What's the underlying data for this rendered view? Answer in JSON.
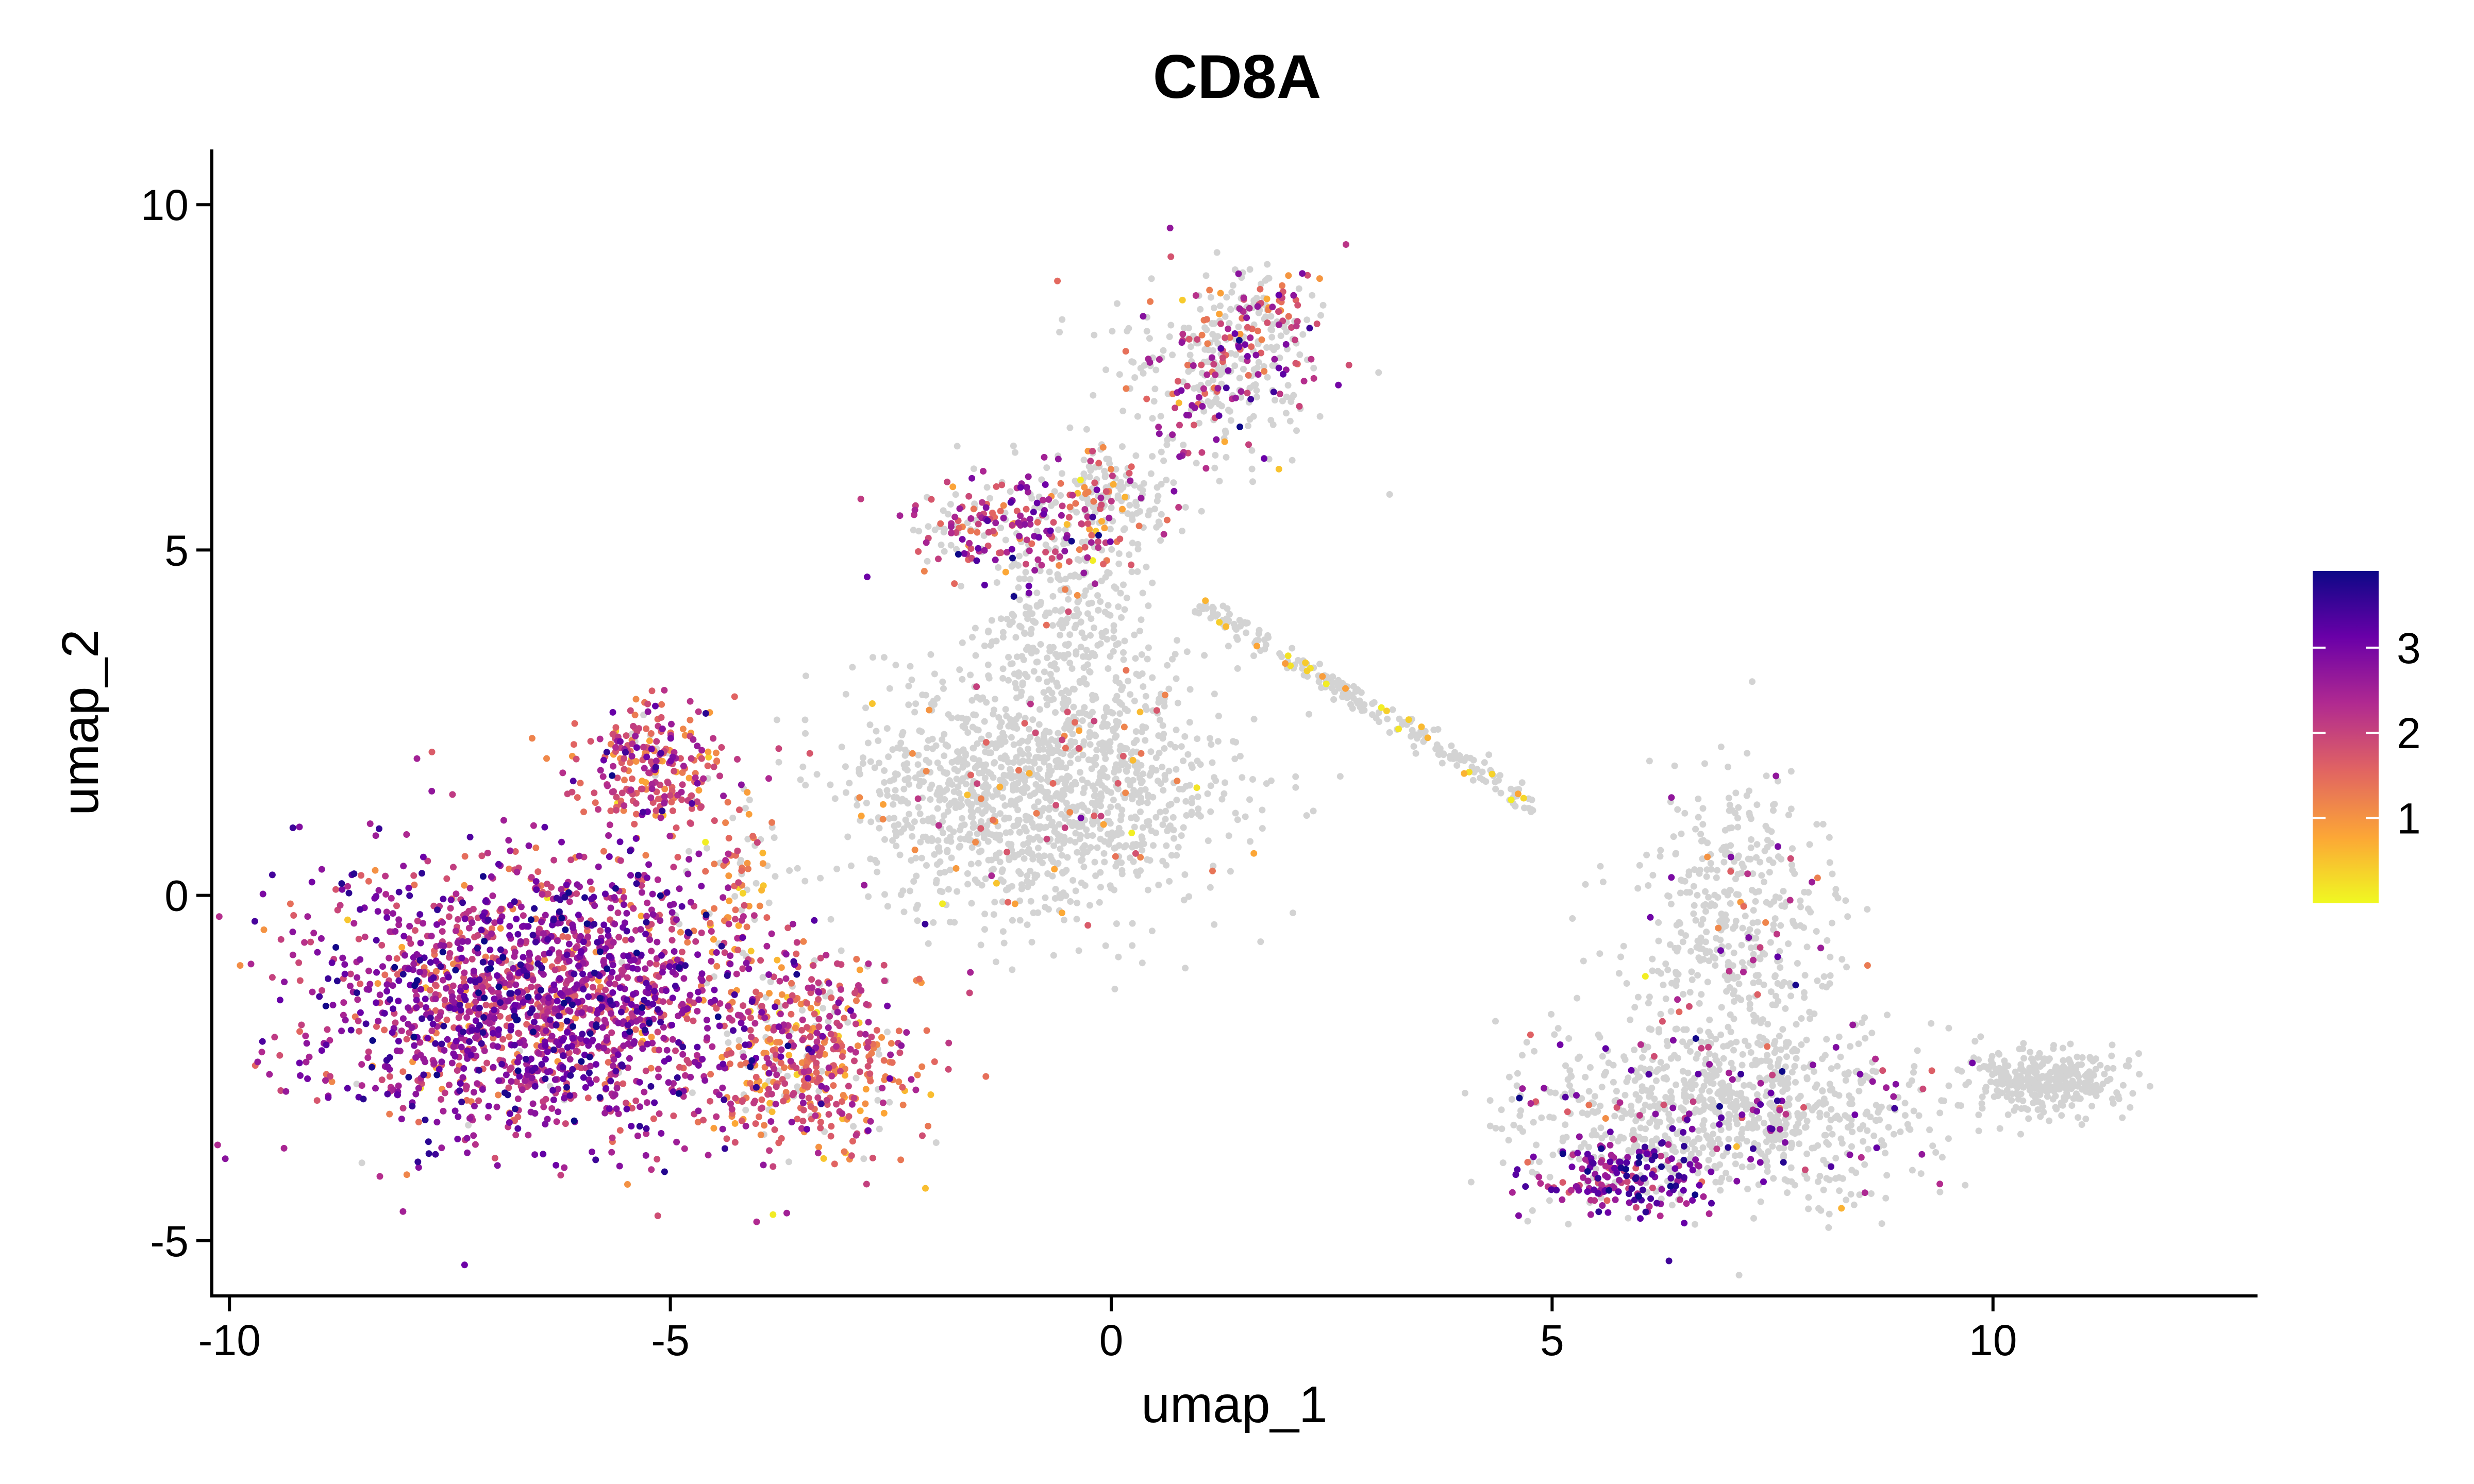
{
  "chart_data": {
    "type": "scatter",
    "title": "CD8A",
    "xlabel": "umap_1",
    "ylabel": "umap_2",
    "xlim": [
      -10.2,
      13
    ],
    "ylim": [
      -5.8,
      10.8
    ],
    "x_ticks": [
      {
        "value": -10,
        "label": "-10"
      },
      {
        "value": -5,
        "label": "-5"
      },
      {
        "value": 0,
        "label": "0"
      },
      {
        "value": 5,
        "label": "5"
      },
      {
        "value": 10,
        "label": "10"
      }
    ],
    "y_ticks": [
      {
        "value": -5,
        "label": "-5"
      },
      {
        "value": 0,
        "label": "0"
      },
      {
        "value": 5,
        "label": "5"
      },
      {
        "value": 10,
        "label": "10"
      }
    ],
    "grid": false,
    "legend": {
      "type": "colorbar",
      "placement": "right",
      "range": [
        0,
        3.9
      ],
      "ticks": [
        {
          "value": 1,
          "label": "1"
        },
        {
          "value": 2,
          "label": "2"
        },
        {
          "value": 3,
          "label": "3"
        }
      ],
      "colors": [
        "#F0F921",
        "#FCA636",
        "#E16462",
        "#B12A90",
        "#6A00A8",
        "#0D0887"
      ]
    },
    "unexpressed_color": "#D3D3D3",
    "clusters": [
      {
        "cx": -6.5,
        "cy": -1.5,
        "sx": 1.3,
        "sy": 1.0,
        "n": 1900,
        "expr_frac": 0.98,
        "expr_mean": 2.5,
        "expr_sd": 0.7
      },
      {
        "cx": -3.5,
        "cy": -2.3,
        "sx": 0.6,
        "sy": 0.7,
        "n": 500,
        "expr_frac": 0.85,
        "expr_mean": 1.6,
        "expr_sd": 0.6
      },
      {
        "cx": -5.2,
        "cy": 1.9,
        "sx": 0.45,
        "sy": 0.45,
        "n": 260,
        "expr_frac": 0.95,
        "expr_mean": 1.8,
        "expr_sd": 0.7
      },
      {
        "cx": -4.2,
        "cy": 0.3,
        "sx": 0.25,
        "sy": 0.7,
        "n": 80,
        "expr_frac": 0.6,
        "expr_mean": 1.3,
        "expr_sd": 0.5
      },
      {
        "cx": -0.8,
        "cy": 1.5,
        "sx": 1.1,
        "sy": 0.9,
        "n": 1300,
        "expr_frac": 0.06,
        "expr_mean": 1.4,
        "expr_sd": 0.6
      },
      {
        "cx": -0.5,
        "cy": 3.8,
        "sx": 0.5,
        "sy": 0.9,
        "n": 300,
        "expr_frac": 0.05,
        "expr_mean": 1.4,
        "expr_sd": 0.6
      },
      {
        "cx": -1.2,
        "cy": 5.3,
        "sx": 0.6,
        "sy": 0.45,
        "n": 230,
        "expr_frac": 0.75,
        "expr_mean": 2.2,
        "expr_sd": 0.7
      },
      {
        "cx": 0.0,
        "cy": 5.8,
        "sx": 0.35,
        "sy": 0.4,
        "n": 160,
        "expr_frac": 0.25,
        "expr_mean": 1.4,
        "expr_sd": 0.6
      },
      {
        "cx": 1.3,
        "cy": 7.6,
        "sx": 0.6,
        "sy": 0.6,
        "n": 280,
        "expr_frac": 0.35,
        "expr_mean": 2.0,
        "expr_sd": 0.8
      },
      {
        "cx": 1.8,
        "cy": 8.5,
        "sx": 0.25,
        "sy": 0.35,
        "n": 60,
        "expr_frac": 0.45,
        "expr_mean": 1.8,
        "expr_sd": 0.7
      },
      {
        "cx": 7.0,
        "cy": -3.1,
        "sx": 1.2,
        "sy": 0.6,
        "n": 900,
        "expr_frac": 0.12,
        "expr_mean": 2.6,
        "expr_sd": 0.7
      },
      {
        "cx": 5.8,
        "cy": -4.1,
        "sx": 0.5,
        "sy": 0.3,
        "n": 200,
        "expr_frac": 0.9,
        "expr_mean": 2.8,
        "expr_sd": 0.6
      },
      {
        "cx": 7.1,
        "cy": -0.5,
        "sx": 0.6,
        "sy": 1.1,
        "n": 450,
        "expr_frac": 0.08,
        "expr_mean": 2.0,
        "expr_sd": 0.8
      },
      {
        "cx": 10.6,
        "cy": -2.7,
        "sx": 0.45,
        "sy": 0.25,
        "n": 320,
        "expr_frac": 0.0,
        "expr_mean": 0,
        "expr_sd": 0
      }
    ],
    "bridges": [
      {
        "from": [
          1.0,
          4.2
        ],
        "to": [
          4.8,
          1.3
        ],
        "n": 220,
        "spread": 0.08,
        "expr_frac": 0.12,
        "expr_mean": 0.5,
        "expr_sd": 0.3
      },
      {
        "from": [
          1.9,
          8.9
        ],
        "to": [
          0.6,
          6.5
        ],
        "n": 90,
        "spread": 0.2,
        "expr_frac": 0.5,
        "expr_mean": 2.2,
        "expr_sd": 0.7
      }
    ]
  }
}
